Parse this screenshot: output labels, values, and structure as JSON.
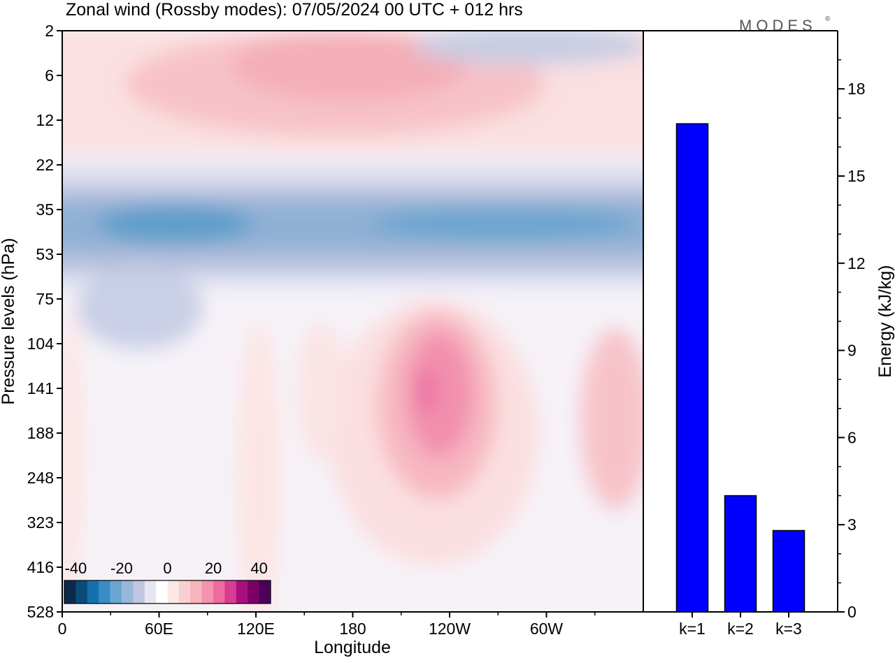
{
  "title": "Zonal wind (Rossby modes):  07/05/2024  00 UTC  + 012 hrs",
  "logo": "MODES",
  "logo_mark": "®",
  "colors": {
    "bar_fill": "#0000ff",
    "colorbar": [
      "#0d2a4a",
      "#0c4a7a",
      "#1570b0",
      "#3a8dc4",
      "#6aa6d2",
      "#98b7da",
      "#bfc6e2",
      "#e6e6f2",
      "#ffffff",
      "#fde8e8",
      "#f9cfd2",
      "#f6b4bd",
      "#f393ad",
      "#ee6aa0",
      "#d93c93",
      "#a90f7d",
      "#7a0068",
      "#4b005a"
    ]
  },
  "chart_data": [
    {
      "type": "heatmap",
      "xlabel": "Longitude",
      "ylabel": "Pressure levels (hPa)",
      "x_ticks": [
        "0",
        "60E",
        "120E",
        "180",
        "120W",
        "60W"
      ],
      "y_ticks": [
        "2",
        "6",
        "12",
        "22",
        "35",
        "53",
        "75",
        "104",
        "141",
        "188",
        "248",
        "323",
        "416",
        "528"
      ],
      "colorbar": {
        "ticks": [
          "-40",
          "-20",
          "0",
          "20",
          "40"
        ],
        "range": [
          -45,
          45
        ],
        "step": 5
      },
      "features": [
        {
          "value": -22,
          "region": "35-53 hPa, 0-100E"
        },
        {
          "value": -22,
          "region": "35-53 hPa, 150W-0"
        },
        {
          "value": 25,
          "region": "104-248 hPa, 130W-105W"
        },
        {
          "value": 30,
          "region": "121-150 hPa, 120W"
        },
        {
          "value": 12,
          "region": "2-12 hPa, 170E-100W"
        },
        {
          "value": -10,
          "region": "2-6 hPa, 75W-30W"
        },
        {
          "value": 10,
          "region": "104-188 hPa, 20W-0"
        }
      ]
    },
    {
      "type": "bar",
      "categories": [
        "k=1",
        "k=2",
        "k=3"
      ],
      "values": [
        16.8,
        4.0,
        2.8
      ],
      "ylabel": "Energy (kJ/kg)",
      "ylim": [
        0,
        20
      ],
      "y_ticks": [
        "0",
        "3",
        "6",
        "9",
        "12",
        "15",
        "18"
      ]
    }
  ]
}
